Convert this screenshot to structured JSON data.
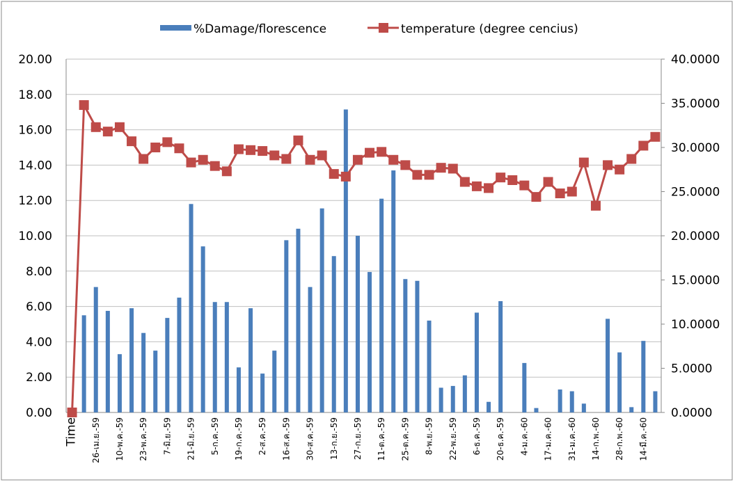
{
  "chart_data": {
    "type": "bar-line",
    "categories": [
      "Time",
      null,
      "26-เม.ย.-59",
      null,
      "10-พ.ค.-59",
      null,
      "23-พ.ค.-59",
      null,
      "7-มิ.ย.-59",
      null,
      "21-มิ.ย.-59",
      null,
      "5-ก.ค.-59",
      null,
      "19-ก.ค.-59",
      null,
      "2-ส.ค.-59",
      null,
      "16-ส.ค.-59",
      null,
      "30-ส.ค.-59",
      null,
      "13-ก.ย.-59",
      null,
      "27-ก.ย.-59",
      null,
      "11-ต.ค.-59",
      null,
      "25-ต.ค.-59",
      null,
      "8-พ.ย.-59",
      null,
      "22-พ.ย.-59",
      null,
      "6-ธ.ค.-59",
      null,
      "20-ธ.ค.-59",
      null,
      "4-ม.ค.-60",
      null,
      "17-ม.ค.-60",
      null,
      "31-ม.ค.-60",
      null,
      "14-ก.พ.-60",
      null,
      "28-ก.พ.-60",
      null,
      "14-มี.ค.-60",
      null
    ],
    "series": [
      {
        "name": "%Damage/florescence",
        "color": "#4a7ebb",
        "type": "bar",
        "values": [
          null,
          5.5,
          7.1,
          5.75,
          3.3,
          5.9,
          4.5,
          3.5,
          5.35,
          6.5,
          11.8,
          9.4,
          6.25,
          6.25,
          2.55,
          5.9,
          2.2,
          3.5,
          9.75,
          10.4,
          7.1,
          11.55,
          8.85,
          17.15,
          10.0,
          7.95,
          12.1,
          13.7,
          7.55,
          7.45,
          5.2,
          1.4,
          1.5,
          2.1,
          5.65,
          0.6,
          6.3,
          0,
          2.8,
          0.25,
          0,
          1.3,
          1.2,
          0.5,
          0,
          5.3,
          3.4,
          0.3,
          4.05,
          1.2
        ]
      },
      {
        "name": "temperature (degree cencius)",
        "color": "#be4b48",
        "type": "line",
        "axis": "y2",
        "values": [
          0,
          34.8,
          32.3,
          31.8,
          32.3,
          30.7,
          28.7,
          30.0,
          30.6,
          29.9,
          28.3,
          28.6,
          27.9,
          27.3,
          29.8,
          29.7,
          29.6,
          29.1,
          28.7,
          30.8,
          28.6,
          29.1,
          27.0,
          26.7,
          28.6,
          29.4,
          29.5,
          28.6,
          28.0,
          26.9,
          26.9,
          27.7,
          27.6,
          26.1,
          25.6,
          25.4,
          26.6,
          26.3,
          25.7,
          24.4,
          26.1,
          24.8,
          25.0,
          28.3,
          23.4,
          28.0,
          27.5,
          28.7,
          30.2,
          31.2
        ]
      }
    ],
    "ylim": [
      0,
      20
    ],
    "yticks": [
      {
        "value": 0,
        "label": "0.00"
      },
      {
        "value": 2,
        "label": "2.00"
      },
      {
        "value": 4,
        "label": "4.00"
      },
      {
        "value": 6,
        "label": "6.00"
      },
      {
        "value": 8,
        "label": "8.00"
      },
      {
        "value": 10,
        "label": "10.00"
      },
      {
        "value": 12,
        "label": "12.00"
      },
      {
        "value": 14,
        "label": "14.00"
      },
      {
        "value": 16,
        "label": "16.00"
      },
      {
        "value": 18,
        "label": "18.00"
      },
      {
        "value": 20,
        "label": "20.00"
      }
    ],
    "y2lim": [
      0,
      40
    ],
    "y2ticks": [
      {
        "value": 0,
        "label": "0.0000"
      },
      {
        "value": 5,
        "label": "5.0000"
      },
      {
        "value": 10,
        "label": "10.0000"
      },
      {
        "value": 15,
        "label": "15.0000"
      },
      {
        "value": 20,
        "label": "20.0000"
      },
      {
        "value": 25,
        "label": "25.0000"
      },
      {
        "value": 30,
        "label": "30.0000"
      },
      {
        "value": 35,
        "label": "35.0000"
      },
      {
        "value": 40,
        "label": "40.0000"
      }
    ],
    "grid": true,
    "legend": "top"
  }
}
